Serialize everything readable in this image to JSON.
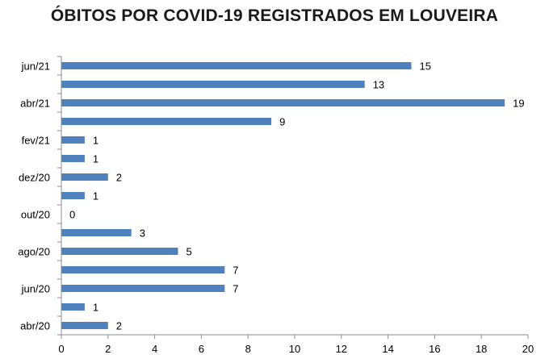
{
  "chart_data": {
    "type": "bar",
    "orientation": "horizontal",
    "title": "ÓBITOS POR COVID-19 REGISTRADOS EM LOUVEIRA",
    "xlabel": "",
    "ylabel": "",
    "xlim": [
      0,
      20
    ],
    "x_ticks": [
      0,
      2,
      4,
      6,
      8,
      10,
      12,
      14,
      16,
      18,
      20
    ],
    "grid": "off",
    "legend": "none",
    "bar_color": "#4f81bd",
    "categories": [
      "jun/21",
      "",
      "abr/21",
      "",
      "fev/21",
      "",
      "dez/20",
      "",
      "out/20",
      "",
      "ago/20",
      "",
      "jun/20",
      "",
      "abr/20"
    ],
    "values": [
      15,
      13,
      19,
      9,
      1,
      1,
      2,
      1,
      0,
      3,
      5,
      7,
      7,
      1,
      2
    ]
  }
}
